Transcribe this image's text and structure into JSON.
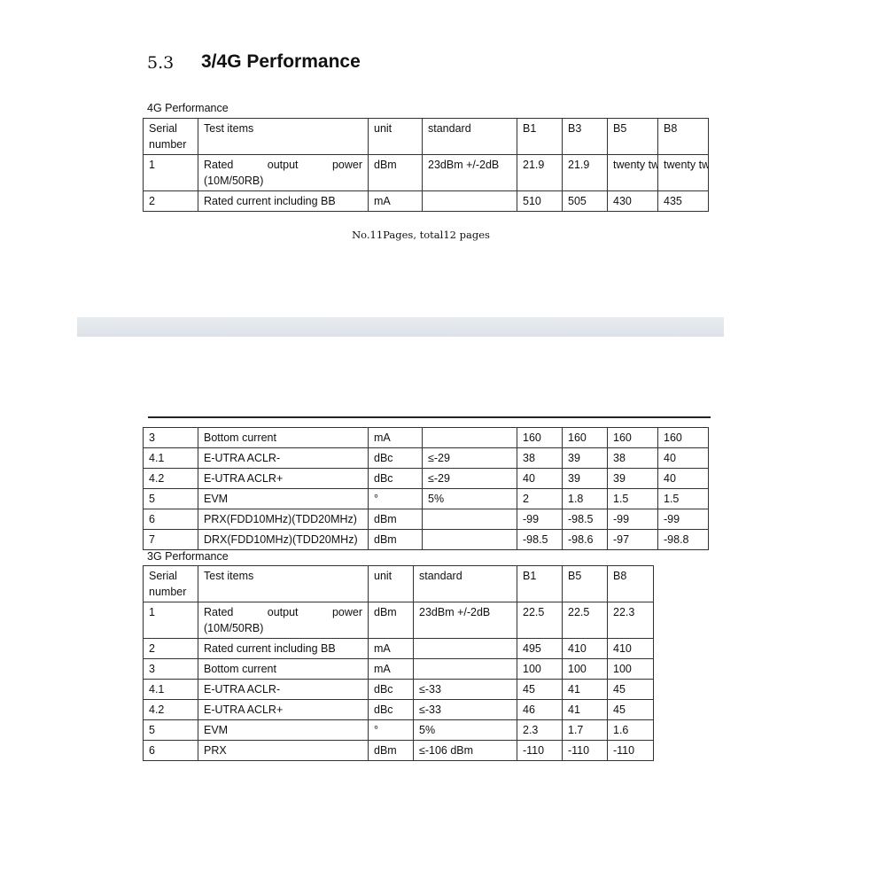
{
  "section": {
    "number": "5.3",
    "title": "3/4G Performance"
  },
  "table4g": {
    "caption": "4G Performance",
    "headers": [
      "Serial number",
      "Test items",
      "unit",
      "standard",
      "B1",
      "B3",
      "B5",
      "B8"
    ],
    "rows": [
      [
        "1",
        "Rated output power (10M/50RB)",
        "dBm",
        "23dBm +/-2dB",
        "21.9",
        "21.9",
        "twenty two",
        "twenty two"
      ],
      [
        "2",
        "Rated current including BB",
        "mA",
        "",
        "510",
        "505",
        "430",
        "435"
      ]
    ],
    "rows_cont": [
      [
        "3",
        "Bottom current",
        "mA",
        "",
        "160",
        "160",
        "160",
        "160"
      ],
      [
        "4.1",
        "E-UTRA ACLR-",
        "dBc",
        "≤-29",
        "38",
        "39",
        "38",
        "40"
      ],
      [
        "4.2",
        "E-UTRA ACLR+",
        "dBc",
        "≤-29",
        "40",
        "39",
        "39",
        "40"
      ],
      [
        "5",
        "EVM",
        "°",
        "5%",
        "2",
        "1.8",
        "1.5",
        "1.5"
      ],
      [
        "6",
        "PRX(FDD10MHz)(TDD20MHz)",
        "dBm",
        "",
        "-99",
        "-98.5",
        "-99",
        "-99"
      ],
      [
        "7",
        "DRX(FDD10MHz)(TDD20MHz)",
        "dBm",
        "",
        "-98.5",
        "-98.6",
        "-97",
        "-98.8"
      ]
    ]
  },
  "footer": "No.11Pages, total12 pages",
  "table3g": {
    "caption": "3G Performance",
    "headers": [
      "Serial number",
      "Test items",
      "unit",
      "standard",
      "B1",
      "B5",
      "B8"
    ],
    "rows": [
      [
        "1",
        "Rated output power (10M/50RB)",
        "dBm",
        "23dBm +/-2dB",
        "22.5",
        "22.5",
        "22.3"
      ],
      [
        "2",
        "Rated current including BB",
        "mA",
        "",
        "495",
        "410",
        "410"
      ],
      [
        "3",
        "Bottom current",
        "mA",
        "",
        "100",
        "100",
        "100"
      ],
      [
        "4.1",
        "E-UTRA ACLR-",
        "dBc",
        "≤-33",
        "45",
        "41",
        "45"
      ],
      [
        "4.2",
        "E-UTRA ACLR+",
        "dBc",
        "≤-33",
        "46",
        "41",
        "45"
      ],
      [
        "5",
        "EVM",
        "°",
        "5%",
        "2.3",
        "1.7",
        "1.6"
      ],
      [
        "6",
        "PRX",
        "dBm",
        "≤-106 dBm",
        "-110",
        "-110",
        "-110"
      ]
    ]
  }
}
